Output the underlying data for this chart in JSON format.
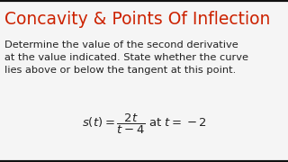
{
  "title": "Concavity & Points Of Inflection",
  "title_color": "#cc2200",
  "body_text_line1": "Determine the value of the second derivative",
  "body_text_line2": "at the value indicated. State whether the curve",
  "body_text_line3": "lies above or below the tangent at this point.",
  "equation": "$s(t) = \\dfrac{2t}{t - 4}$ at $t = -2$",
  "background_color": "#f5f5f5",
  "text_color": "#222222",
  "title_fontsize": 13.5,
  "body_fontsize": 8.2,
  "eq_fontsize": 9.5,
  "border_color": "#111111",
  "border_thickness": 3
}
